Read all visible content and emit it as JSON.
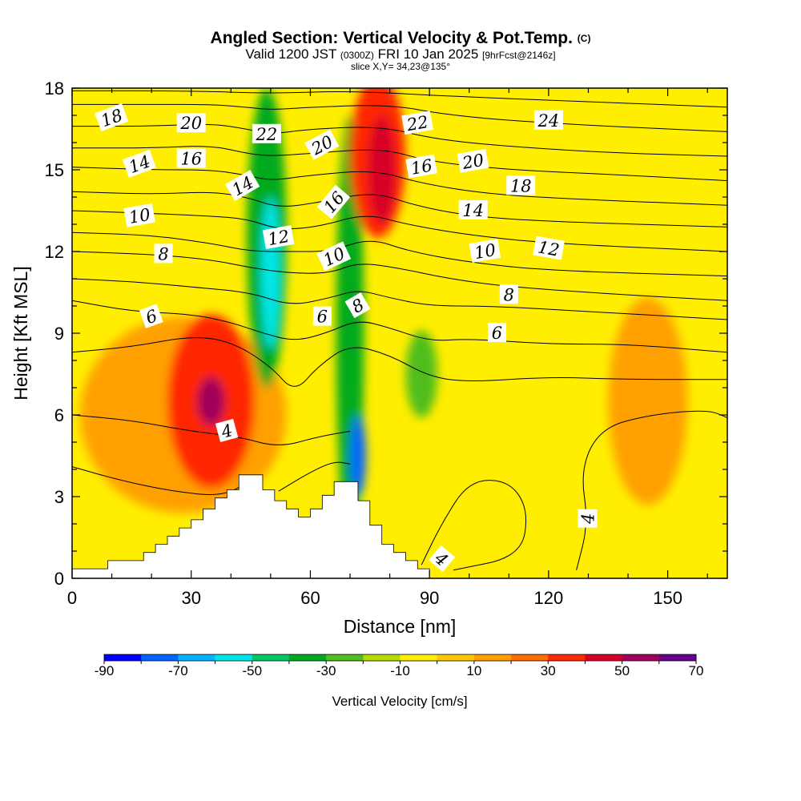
{
  "title": {
    "main": "Angled Section: Vertical Velocity & Pot.Temp.",
    "copyright": "(C)",
    "valid_prefix": "Valid 1200 JST",
    "valid_utc": "(0300Z)",
    "valid_date": "FRI 10 Jan 2025",
    "forecast": "[9hrFcst@2146z]",
    "slice": "slice X,Y= 34,23@135°"
  },
  "chart_data": {
    "type": "heatmap",
    "xlabel": "Distance [nm]",
    "ylabel": "Height [Kft MSL]",
    "xlim": [
      0,
      165
    ],
    "ylim": [
      0,
      18
    ],
    "x_ticks": [
      0,
      30,
      60,
      90,
      120,
      150
    ],
    "y_ticks": [
      0,
      3,
      6,
      9,
      12,
      15,
      18
    ],
    "colorbar": {
      "label": "Vertical Velocity [cm/s]",
      "tick_values": [
        -90,
        -70,
        -50,
        -30,
        -10,
        10,
        30,
        50,
        70
      ],
      "bins": [
        -90,
        -80,
        -70,
        -60,
        -50,
        -40,
        -30,
        -20,
        -10,
        0,
        10,
        20,
        30,
        40,
        50,
        60,
        70
      ],
      "colors": [
        "#0000ff",
        "#0064ff",
        "#00b4ff",
        "#00e6e6",
        "#00c864",
        "#00aa1e",
        "#50be1e",
        "#b4dc00",
        "#ffee00",
        "#ffc800",
        "#ffa000",
        "#ff6e00",
        "#ff2800",
        "#d70028",
        "#a0005a",
        "#6a0090"
      ]
    },
    "field_background": "#ffee00",
    "vertical_velocity_features": [
      {
        "name": "updraft-west",
        "x": 28,
        "z": 6.0,
        "rx": 26,
        "rz": 3.6,
        "w": 14
      },
      {
        "name": "updraft-west-core",
        "x": 35,
        "z": 6.5,
        "rx": 11,
        "rz": 3.2,
        "w": 35
      },
      {
        "name": "updraft-west-max",
        "x": 35,
        "z": 6.5,
        "rx": 3.5,
        "rz": 0.9,
        "w": 55
      },
      {
        "name": "downdraft-lee-1",
        "x": 49,
        "z": 12.5,
        "rx": 5,
        "rz": 5.5,
        "w": -35
      },
      {
        "name": "downdraft-lee-1-core",
        "x": 50,
        "z": 11.2,
        "rx": 2.5,
        "rz": 2.8,
        "w": -55
      },
      {
        "name": "downdraft-lee-2",
        "x": 70,
        "z": 9,
        "rx": 3.5,
        "rz": 8,
        "w": -35
      },
      {
        "name": "downdraft-lee-2-core",
        "x": 72,
        "z": 4.5,
        "rx": 2,
        "rz": 1.5,
        "w": -75
      },
      {
        "name": "updraft-east",
        "x": 77,
        "z": 15.5,
        "rx": 7,
        "rz": 3,
        "w": 30
      },
      {
        "name": "updraft-east-core",
        "x": 78,
        "z": 15,
        "rx": 3.5,
        "rz": 2,
        "w": 45
      },
      {
        "name": "downdraft-90",
        "x": 88,
        "z": 7.5,
        "rx": 4,
        "rz": 1.6,
        "w": -30
      },
      {
        "name": "updraft-140",
        "x": 145,
        "z": 6.5,
        "rx": 10,
        "rz": 3.8,
        "w": 12
      }
    ],
    "terrain_profile": {
      "x": [
        0,
        9,
        9,
        18,
        18,
        21,
        21,
        24,
        24,
        27,
        27,
        30,
        30,
        33,
        33,
        36,
        36,
        39,
        39,
        42,
        42,
        48,
        48,
        51,
        51,
        54,
        54,
        57,
        57,
        60,
        60,
        63,
        63,
        66,
        66,
        72,
        72,
        75,
        75,
        78,
        78,
        81,
        81,
        84,
        84,
        87,
        87,
        90,
        90,
        165
      ],
      "z": [
        0.35,
        0.35,
        0.65,
        0.65,
        0.95,
        0.95,
        1.25,
        1.25,
        1.55,
        1.55,
        1.85,
        1.85,
        2.15,
        2.15,
        2.55,
        2.55,
        2.95,
        2.95,
        3.25,
        3.25,
        3.8,
        3.8,
        3.25,
        3.25,
        2.85,
        2.85,
        2.55,
        2.55,
        2.25,
        2.25,
        2.55,
        2.55,
        3.05,
        3.05,
        3.55,
        3.55,
        2.85,
        2.85,
        1.95,
        1.95,
        1.25,
        1.25,
        0.95,
        0.95,
        0.65,
        0.65,
        0.35,
        0.35,
        0,
        0
      ]
    },
    "potential_temperature_labels": [
      {
        "text": "18",
        "x": 10,
        "z": 16.9,
        "angle": 20
      },
      {
        "text": "20",
        "x": 30,
        "z": 16.7,
        "angle": 0
      },
      {
        "text": "14",
        "x": 17,
        "z": 15.2,
        "angle": 20
      },
      {
        "text": "16",
        "x": 30,
        "z": 15.4,
        "angle": 0
      },
      {
        "text": "22",
        "x": 49,
        "z": 16.3,
        "angle": 0
      },
      {
        "text": "20",
        "x": 63,
        "z": 15.9,
        "angle": 28
      },
      {
        "text": "14",
        "x": 43,
        "z": 14.4,
        "angle": 30
      },
      {
        "text": "16",
        "x": 66,
        "z": 13.8,
        "angle": 50
      },
      {
        "text": "12",
        "x": 52,
        "z": 12.5,
        "angle": 10
      },
      {
        "text": "10",
        "x": 66,
        "z": 11.8,
        "angle": 25
      },
      {
        "text": "8",
        "x": 72,
        "z": 10.0,
        "angle": 30
      },
      {
        "text": "6",
        "x": 63,
        "z": 9.6,
        "angle": 0
      },
      {
        "text": "22",
        "x": 87,
        "z": 16.7,
        "angle": 10
      },
      {
        "text": "16",
        "x": 88,
        "z": 15.1,
        "angle": 10
      },
      {
        "text": "24",
        "x": 120,
        "z": 16.8,
        "angle": 0
      },
      {
        "text": "20",
        "x": 101,
        "z": 15.3,
        "angle": 10
      },
      {
        "text": "18",
        "x": 113,
        "z": 14.4,
        "angle": 0
      },
      {
        "text": "14",
        "x": 101,
        "z": 13.5,
        "angle": 0
      },
      {
        "text": "10",
        "x": 104,
        "z": 12.0,
        "angle": 10
      },
      {
        "text": "12",
        "x": 120,
        "z": 12.1,
        "angle": -10
      },
      {
        "text": "8",
        "x": 110,
        "z": 10.4,
        "angle": 0
      },
      {
        "text": "6",
        "x": 107,
        "z": 9.0,
        "angle": 0
      },
      {
        "text": "10",
        "x": 17,
        "z": 13.3,
        "angle": 10
      },
      {
        "text": "8",
        "x": 23,
        "z": 11.9,
        "angle": 0
      },
      {
        "text": "6",
        "x": 20,
        "z": 9.6,
        "angle": 20
      },
      {
        "text": "4",
        "x": 39,
        "z": 5.4,
        "angle": 15
      },
      {
        "text": "4",
        "x": 130,
        "z": 2.2,
        "angle": 90
      },
      {
        "text": "4",
        "x": 93,
        "z": 0.7,
        "angle": -40
      }
    ],
    "contour_lines": [
      {
        "level": 4,
        "pts": [
          [
            0,
            4.1
          ],
          [
            12,
            3.6
          ],
          [
            25,
            3.2
          ],
          [
            38,
            3.0
          ],
          [
            45,
            3.6
          ]
        ]
      },
      {
        "level": 4,
        "pts": [
          [
            52,
            3.2
          ],
          [
            60,
            3.9
          ],
          [
            66,
            4.3
          ],
          [
            70,
            4.2
          ]
        ]
      },
      {
        "level": 4,
        "pts": [
          [
            0,
            6.0
          ],
          [
            15,
            5.8
          ],
          [
            30,
            5.4
          ],
          [
            42,
            5.2
          ],
          [
            52,
            4.8
          ],
          [
            62,
            5.2
          ],
          [
            70,
            5.4
          ]
        ]
      },
      {
        "level": 4,
        "pts": [
          [
            127,
            0.3
          ],
          [
            130,
            2.0
          ],
          [
            128,
            4.0
          ],
          [
            133,
            5.5
          ],
          [
            145,
            6.0
          ],
          [
            160,
            6.2
          ],
          [
            165,
            5.9
          ]
        ]
      },
      {
        "level": 4,
        "pts": [
          [
            88,
            0.5
          ],
          [
            93,
            2.0
          ],
          [
            100,
            3.6
          ],
          [
            110,
            3.6
          ],
          [
            115,
            2.5
          ],
          [
            113,
            0.8
          ],
          [
            96,
            0.3
          ]
        ]
      },
      {
        "level": 5,
        "pts": [
          [
            0,
            8.3
          ],
          [
            15,
            8.5
          ],
          [
            30,
            8.9
          ],
          [
            40,
            8.7
          ],
          [
            50,
            7.8
          ],
          [
            56,
            6.8
          ],
          [
            62,
            7.8
          ],
          [
            70,
            8.6
          ],
          [
            80,
            8.2
          ],
          [
            90,
            7.4
          ],
          [
            100,
            7.2
          ],
          [
            120,
            7.4
          ],
          [
            140,
            7.3
          ],
          [
            165,
            7.3
          ]
        ]
      },
      {
        "level": 6,
        "pts": [
          [
            0,
            10.2
          ],
          [
            15,
            9.8
          ],
          [
            30,
            9.7
          ],
          [
            40,
            9.4
          ],
          [
            48,
            9.0
          ],
          [
            56,
            8.7
          ],
          [
            64,
            9.0
          ],
          [
            72,
            9.5
          ],
          [
            80,
            9.2
          ],
          [
            90,
            8.7
          ],
          [
            100,
            8.8
          ],
          [
            120,
            8.6
          ],
          [
            140,
            8.6
          ],
          [
            165,
            8.3
          ]
        ]
      },
      {
        "level": 7,
        "pts": [
          [
            0,
            11.0
          ],
          [
            15,
            10.9
          ],
          [
            30,
            10.7
          ],
          [
            45,
            10.5
          ],
          [
            55,
            10.0
          ],
          [
            65,
            10.3
          ],
          [
            72,
            10.6
          ],
          [
            80,
            10.3
          ],
          [
            90,
            10.0
          ],
          [
            105,
            10.0
          ],
          [
            130,
            9.8
          ],
          [
            165,
            9.5
          ]
        ]
      },
      {
        "level": 8,
        "pts": [
          [
            0,
            12.0
          ],
          [
            20,
            11.9
          ],
          [
            35,
            11.7
          ],
          [
            45,
            11.4
          ],
          [
            55,
            11.2
          ],
          [
            65,
            11.2
          ],
          [
            72,
            11.6
          ],
          [
            82,
            11.4
          ],
          [
            95,
            11.0
          ],
          [
            110,
            10.7
          ],
          [
            140,
            10.4
          ],
          [
            165,
            10.2
          ]
        ]
      },
      {
        "level": 9,
        "pts": [
          [
            0,
            12.7
          ],
          [
            20,
            12.6
          ],
          [
            35,
            12.3
          ],
          [
            45,
            12.0
          ],
          [
            55,
            12.0
          ],
          [
            65,
            12.0
          ],
          [
            75,
            12.5
          ],
          [
            85,
            12.0
          ],
          [
            100,
            11.6
          ],
          [
            120,
            11.3
          ],
          [
            165,
            11.1
          ]
        ]
      },
      {
        "level": 10,
        "pts": [
          [
            0,
            13.5
          ],
          [
            20,
            13.4
          ],
          [
            35,
            13.3
          ],
          [
            44,
            13.2
          ],
          [
            52,
            12.8
          ],
          [
            62,
            12.9
          ],
          [
            74,
            13.4
          ],
          [
            84,
            13.0
          ],
          [
            100,
            12.6
          ],
          [
            120,
            12.3
          ],
          [
            165,
            12.0
          ]
        ]
      },
      {
        "level": 11,
        "pts": [
          [
            0,
            14.2
          ],
          [
            20,
            14.1
          ],
          [
            35,
            14.2
          ],
          [
            44,
            14.0
          ],
          [
            52,
            13.6
          ],
          [
            62,
            13.8
          ],
          [
            76,
            14.2
          ],
          [
            86,
            13.7
          ],
          [
            100,
            13.3
          ],
          [
            120,
            13.1
          ],
          [
            165,
            12.9
          ]
        ]
      },
      {
        "level": 12,
        "pts": [
          [
            0,
            15.1
          ],
          [
            20,
            15.0
          ],
          [
            35,
            15.0
          ],
          [
            44,
            14.8
          ],
          [
            50,
            14.6
          ],
          [
            60,
            14.8
          ],
          [
            76,
            15.0
          ],
          [
            88,
            14.5
          ],
          [
            105,
            14.1
          ],
          [
            130,
            13.9
          ],
          [
            165,
            13.7
          ]
        ]
      },
      {
        "level": 13,
        "pts": [
          [
            0,
            15.8
          ],
          [
            20,
            15.8
          ],
          [
            35,
            15.9
          ],
          [
            44,
            15.6
          ],
          [
            50,
            15.5
          ],
          [
            60,
            15.6
          ],
          [
            78,
            15.8
          ],
          [
            90,
            15.3
          ],
          [
            110,
            15.0
          ],
          [
            140,
            14.8
          ],
          [
            165,
            14.6
          ]
        ]
      },
      {
        "level": 14,
        "pts": [
          [
            0,
            16.6
          ],
          [
            20,
            16.6
          ],
          [
            35,
            16.7
          ],
          [
            44,
            16.5
          ],
          [
            50,
            16.3
          ],
          [
            60,
            16.5
          ],
          [
            78,
            16.6
          ],
          [
            92,
            16.1
          ],
          [
            115,
            15.8
          ],
          [
            140,
            15.6
          ],
          [
            165,
            15.5
          ]
        ]
      },
      {
        "level": 15,
        "pts": [
          [
            0,
            17.4
          ],
          [
            20,
            17.4
          ],
          [
            35,
            17.4
          ],
          [
            44,
            17.3
          ],
          [
            50,
            17.2
          ],
          [
            60,
            17.3
          ],
          [
            80,
            17.4
          ],
          [
            95,
            17.0
          ],
          [
            120,
            16.7
          ],
          [
            165,
            16.4
          ]
        ]
      },
      {
        "level": 16,
        "pts": [
          [
            0,
            17.9
          ],
          [
            30,
            17.9
          ],
          [
            50,
            17.8
          ],
          [
            70,
            17.9
          ],
          [
            95,
            17.7
          ],
          [
            130,
            17.5
          ],
          [
            165,
            17.3
          ]
        ]
      }
    ]
  }
}
